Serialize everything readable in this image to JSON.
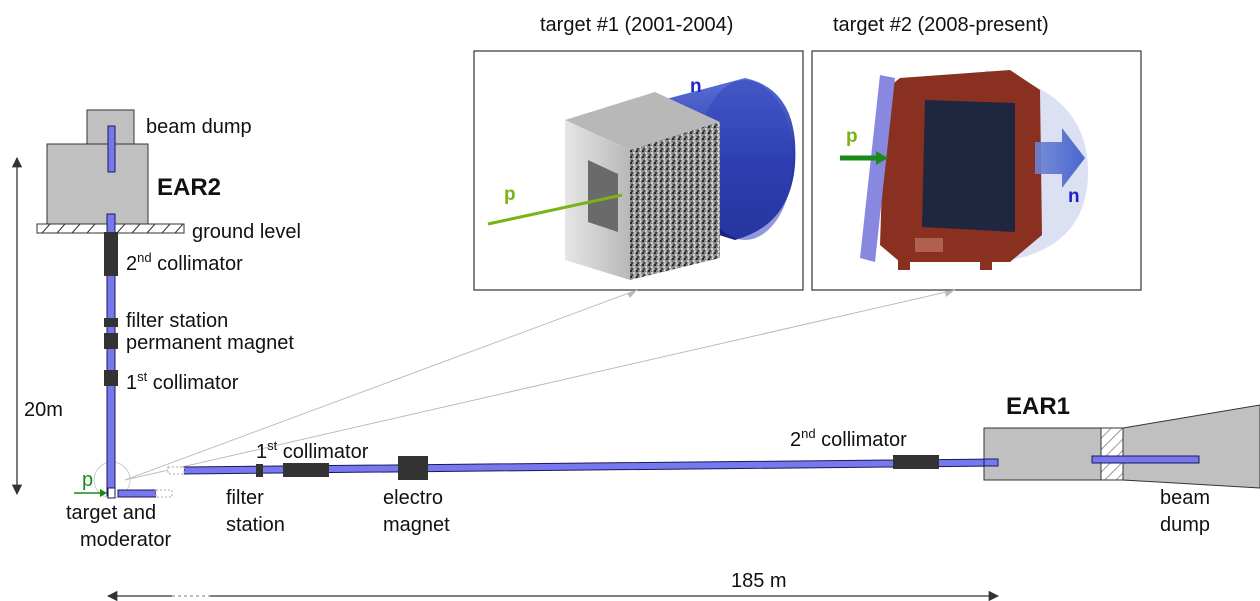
{
  "labels": {
    "target1_title": "target #1 (2001-2004)",
    "target2_title": "target #2 (2008-present)",
    "beam_dump_top": "beam dump",
    "ear2": "EAR2",
    "ground_level": "ground level",
    "collimator2_vertical_num": "2",
    "collimator2_vertical_sup": "nd",
    "collimator2_vertical_word": " collimator",
    "filter_station_vertical": "filter station",
    "permanent_magnet": "permanent magnet",
    "collimator1_vertical_num": "1",
    "collimator1_vertical_sup": "st",
    "collimator1_vertical_word": " collimator",
    "distance_20m": "20m",
    "proton_symbol": "p",
    "target_moderator_line1": "target and",
    "target_moderator_line2": "moderator",
    "collimator1_horizontal_num": "1",
    "collimator1_horizontal_sup": "st",
    "collimator1_horizontal_word": " collimator",
    "filter_station_line1": "filter",
    "filter_station_line2": "station",
    "electro_magnet_line1": "electro",
    "electro_magnet_line2": "magnet",
    "collimator2_horizontal_num": "2",
    "collimator2_horizontal_sup": "nd",
    "collimator2_horizontal_word": " collimator",
    "ear1": "EAR1",
    "beam_dump_right_line1": "beam",
    "beam_dump_right_line2": "dump",
    "distance_185m": "185 m",
    "inset1_n": "n",
    "inset1_p": "p",
    "inset2_p": "p",
    "inset2_n": "n"
  },
  "colors": {
    "beam_pipe": "#7777ee",
    "pipe_outline": "#1a1a5a",
    "building_gray": "#c0c0c0",
    "magnet_dark": "#333333",
    "proton_green": "#1a8a1a",
    "neutron_blue": "#2222cc",
    "inset_p_green": "#7ab318"
  }
}
